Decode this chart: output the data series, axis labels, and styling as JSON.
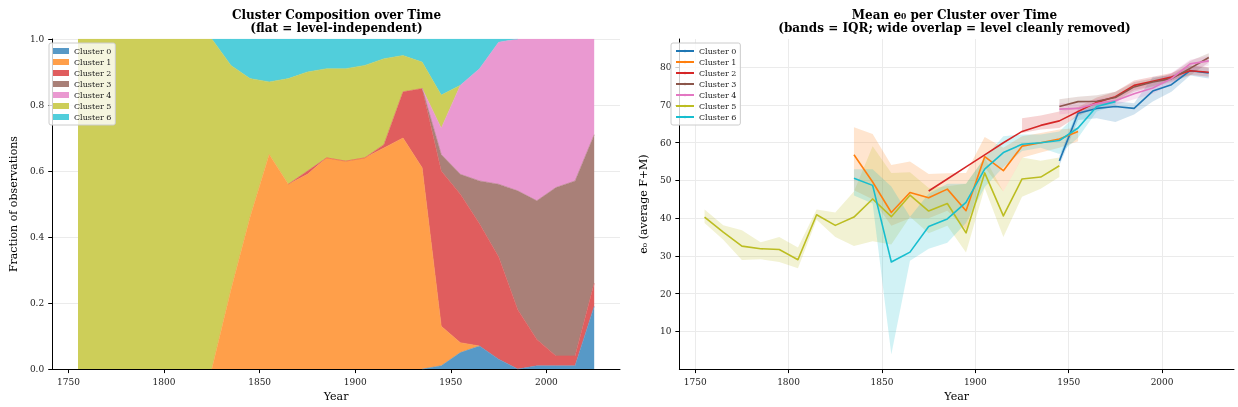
{
  "chart_data": [
    {
      "type": "area",
      "stacked": true,
      "title": "Cluster Composition over Time",
      "subtitle": "(flat = level-independent)",
      "xlabel": "Year",
      "ylabel": "Fraction of observations",
      "x": [
        1755,
        1765,
        1775,
        1785,
        1795,
        1805,
        1815,
        1825,
        1835,
        1845,
        1855,
        1865,
        1875,
        1885,
        1895,
        1905,
        1915,
        1925,
        1935,
        1945,
        1955,
        1965,
        1975,
        1985,
        1995,
        2005,
        2015,
        2025
      ],
      "series": [
        {
          "name": "Cluster 0",
          "color": "#5799c7",
          "values": [
            null,
            null,
            null,
            null,
            null,
            null,
            null,
            null,
            null,
            null,
            null,
            null,
            null,
            null,
            null,
            null,
            null,
            null,
            0,
            0.01,
            0.05,
            0.07,
            0.03,
            0,
            0.01,
            0.01,
            0.01,
            0.19
          ]
        },
        {
          "name": "Cluster 1",
          "color": "#ff9f4a",
          "values": [
            null,
            null,
            null,
            null,
            null,
            null,
            null,
            0,
            0.24,
            0.46,
            0.65,
            0.56,
            0.59,
            0.64,
            0.63,
            0.64,
            0.67,
            0.7,
            0.61,
            0.12,
            0.03,
            0,
            null,
            null,
            null,
            null,
            null,
            null
          ]
        },
        {
          "name": "Cluster 2",
          "color": "#e05d5e",
          "values": [
            null,
            null,
            null,
            null,
            null,
            null,
            null,
            null,
            null,
            null,
            null,
            0,
            0.01,
            0,
            0,
            0,
            0.01,
            0.14,
            0.24,
            0.47,
            0.45,
            0.37,
            0.31,
            0.18,
            0.08,
            0.03,
            0.03,
            0.07
          ]
        },
        {
          "name": "Cluster 3",
          "color": "#a98078",
          "values": [
            null,
            null,
            null,
            null,
            null,
            null,
            null,
            null,
            null,
            null,
            null,
            null,
            null,
            null,
            null,
            null,
            null,
            null,
            0,
            0.05,
            0.06,
            0.13,
            0.22,
            0.36,
            0.42,
            0.51,
            0.53,
            0.45
          ]
        },
        {
          "name": "Cluster 4",
          "color": "#ea99d1",
          "values": [
            null,
            null,
            null,
            null,
            null,
            null,
            null,
            null,
            null,
            null,
            null,
            null,
            null,
            null,
            null,
            null,
            null,
            null,
            0,
            0.08,
            0.27,
            0.34,
            0.43,
            0.46,
            0.49,
            0.45,
            0.43,
            0.29
          ]
        },
        {
          "name": "Cluster 5",
          "color": "#cdce59",
          "values": [
            1,
            1,
            1,
            1,
            1,
            1,
            1,
            1,
            0.68,
            0.42,
            0.22,
            0.32,
            0.3,
            0.27,
            0.28,
            0.28,
            0.26,
            0.11,
            0.08,
            0.1,
            0,
            null,
            null,
            null,
            null,
            null,
            null,
            null
          ]
        },
        {
          "name": "Cluster 6",
          "color": "#51cedb",
          "values": [
            null,
            null,
            null,
            null,
            null,
            null,
            null,
            0,
            0.08,
            0.12,
            0.13,
            0.12,
            0.1,
            0.09,
            0.09,
            0.08,
            0.06,
            0.05,
            0.07,
            0.17,
            0.14,
            0.09,
            0.01,
            0,
            null,
            null,
            null,
            null
          ]
        }
      ],
      "xlim": [
        1741.5,
        2038.5
      ],
      "xticks": [
        1750,
        1800,
        1850,
        1900,
        1950,
        2000
      ],
      "ylim": [
        0,
        1
      ],
      "yticks": [
        {
          "value": 0,
          "label": "0.0"
        },
        0.2,
        0.4,
        0.6,
        0.8,
        {
          "value": 1,
          "label": "1.0"
        }
      ],
      "grid": "y",
      "legend": "top left"
    },
    {
      "type": "line",
      "title": "Mean e₀ per Cluster over Time",
      "subtitle": "(bands = IQR; wide overlap = level cleanly removed)",
      "xlabel": "Year",
      "ylabel": "e₀ (average F+M)",
      "series": [
        {
          "name": "Cluster 0",
          "color": "#1f77b4",
          "x": [
            1945,
            1955,
            1965,
            1975,
            1985,
            1995,
            2005,
            2015,
            2025
          ],
          "values": [
            55.2,
            67.8,
            69.1,
            69.6,
            69.1,
            73.7,
            75.4,
            79.1,
            78.5
          ],
          "lower": [
            54.0,
            66.0,
            66.5,
            65.5,
            67.5,
            70.9,
            73.5,
            77.8,
            77.0
          ],
          "upper": [
            56.5,
            69.0,
            71.0,
            71.0,
            70.5,
            77.4,
            77.8,
            80.5,
            79.8
          ]
        },
        {
          "name": "Cluster 1",
          "color": "#ff7f0e",
          "x": [
            1835,
            1845,
            1855,
            1865,
            1875,
            1885,
            1895,
            1905,
            1915,
            1925,
            1935,
            1945,
            1955
          ],
          "values": [
            56.8,
            49.6,
            41.5,
            46.8,
            45.4,
            47.7,
            42.0,
            56.3,
            52.6,
            59.1,
            60.0,
            61.0,
            63.0
          ],
          "lower": [
            47.4,
            45.0,
            38.0,
            40.0,
            40.0,
            42.0,
            37.0,
            53.5,
            47.0,
            56.0,
            57.4,
            58.7,
            60.4
          ],
          "upper": [
            64.1,
            62.3,
            54.1,
            55.0,
            51.7,
            51.9,
            52.0,
            61.5,
            58.7,
            61.7,
            62.6,
            63.5,
            63.9
          ]
        },
        {
          "name": "Cluster 2",
          "color": "#d62728",
          "x": [
            1875,
            1885,
            1895,
            1905,
            1915,
            1925,
            1935,
            1945,
            1955,
            1965,
            1975,
            1985,
            1995,
            2005,
            2015,
            2025
          ],
          "values": [
            47.2,
            50.4,
            53.6,
            56.8,
            60.0,
            63.0,
            64.6,
            65.8,
            68.3,
            70.7,
            72.2,
            75.2,
            76.3,
            77.4,
            79.1,
            78.7
          ],
          "lower": [
            null,
            null,
            null,
            null,
            null,
            62.6,
            63.5,
            63.9,
            67.0,
            69.5,
            71.0,
            74.0,
            75.0,
            76.5,
            78.0,
            77.5
          ],
          "upper": [
            null,
            null,
            null,
            null,
            null,
            66.5,
            67.2,
            68.3,
            69.5,
            72.0,
            73.5,
            76.5,
            77.5,
            78.5,
            80.5,
            80.0
          ]
        },
        {
          "name": "Cluster 3",
          "color": "#8c564b",
          "x": [
            1945,
            1955,
            1965,
            1975,
            1985,
            1995,
            2005,
            2015,
            2025
          ],
          "values": [
            69.6,
            70.9,
            71.0,
            72.0,
            74.8,
            76.1,
            77.0,
            79.7,
            82.6
          ],
          "lower": [
            68.3,
            69.1,
            70.0,
            70.7,
            73.5,
            74.8,
            76.1,
            77.8,
            81.3
          ],
          "upper": [
            71.5,
            72.2,
            72.6,
            73.5,
            76.1,
            77.0,
            78.3,
            81.7,
            83.7
          ]
        },
        {
          "name": "Cluster 4",
          "color": "#e377c2",
          "x": [
            1945,
            1955,
            1965,
            1975,
            1985,
            1995,
            2005,
            2015,
            2025
          ],
          "values": [
            68.9,
            69.1,
            70.4,
            71.1,
            73.0,
            74.5,
            77.0,
            80.9,
            81.7
          ],
          "lower": [
            67.5,
            68.0,
            69.0,
            70.0,
            71.5,
            73.0,
            75.5,
            79.0,
            80.5
          ],
          "upper": [
            70.5,
            70.5,
            71.5,
            72.5,
            74.5,
            76.0,
            78.5,
            82.0,
            83.0
          ]
        },
        {
          "name": "Cluster 5",
          "color": "#bcbd22",
          "x": [
            1755,
            1765,
            1775,
            1785,
            1795,
            1805,
            1815,
            1825,
            1835,
            1845,
            1855,
            1865,
            1875,
            1885,
            1895,
            1905,
            1915,
            1925,
            1935,
            1945
          ],
          "values": [
            40.3,
            36.3,
            32.6,
            31.9,
            31.7,
            29.0,
            40.9,
            38.1,
            40.3,
            45.1,
            40.4,
            46.1,
            41.9,
            43.9,
            36.1,
            52.0,
            40.6,
            50.4,
            50.9,
            53.9
          ],
          "lower": [
            38.7,
            34.3,
            28.9,
            29.1,
            28.4,
            26.7,
            39.6,
            35.0,
            32.6,
            33.9,
            33.0,
            40.4,
            36.0,
            38.0,
            30.9,
            48.0,
            35.0,
            45.7,
            47.8,
            50.9
          ],
          "upper": [
            42.3,
            38.1,
            36.8,
            33.6,
            35.0,
            32.2,
            42.3,
            41.5,
            47.1,
            59.1,
            52.0,
            52.2,
            48.0,
            48.5,
            49.1,
            56.0,
            47.0,
            56.1,
            55.2,
            56.1
          ]
        },
        {
          "name": "Cluster 6",
          "color": "#17becf",
          "x": [
            1835,
            1845,
            1855,
            1865,
            1875,
            1885,
            1895,
            1905,
            1915,
            1925,
            1935,
            1945,
            1955,
            1965,
            1975
          ],
          "values": [
            50.6,
            48.7,
            28.4,
            31.0,
            37.8,
            39.8,
            44.2,
            53.0,
            57.4,
            59.6,
            60.0,
            60.6,
            63.9,
            69.6,
            70.9
          ],
          "lower": [
            46.0,
            43.9,
            3.9,
            28.7,
            31.9,
            33.5,
            38.7,
            48.3,
            53.5,
            57.8,
            58.7,
            57.0,
            61.3,
            68.3,
            70.0
          ],
          "upper": [
            53.0,
            53.0,
            48.4,
            40.4,
            46.5,
            49.1,
            49.1,
            56.1,
            61.7,
            62.2,
            62.2,
            63.0,
            67.8,
            70.4,
            71.3
          ]
        }
      ],
      "xlim": [
        1741.5,
        2038.5
      ],
      "xticks": [
        1750,
        1800,
        1850,
        1900,
        1950,
        2000
      ],
      "ylim": [
        0,
        87.5
      ],
      "yticks": [
        10,
        20,
        30,
        40,
        50,
        60,
        70,
        80
      ],
      "grid": true,
      "legend": "top left",
      "marker": "none",
      "line_style": "solid"
    }
  ]
}
